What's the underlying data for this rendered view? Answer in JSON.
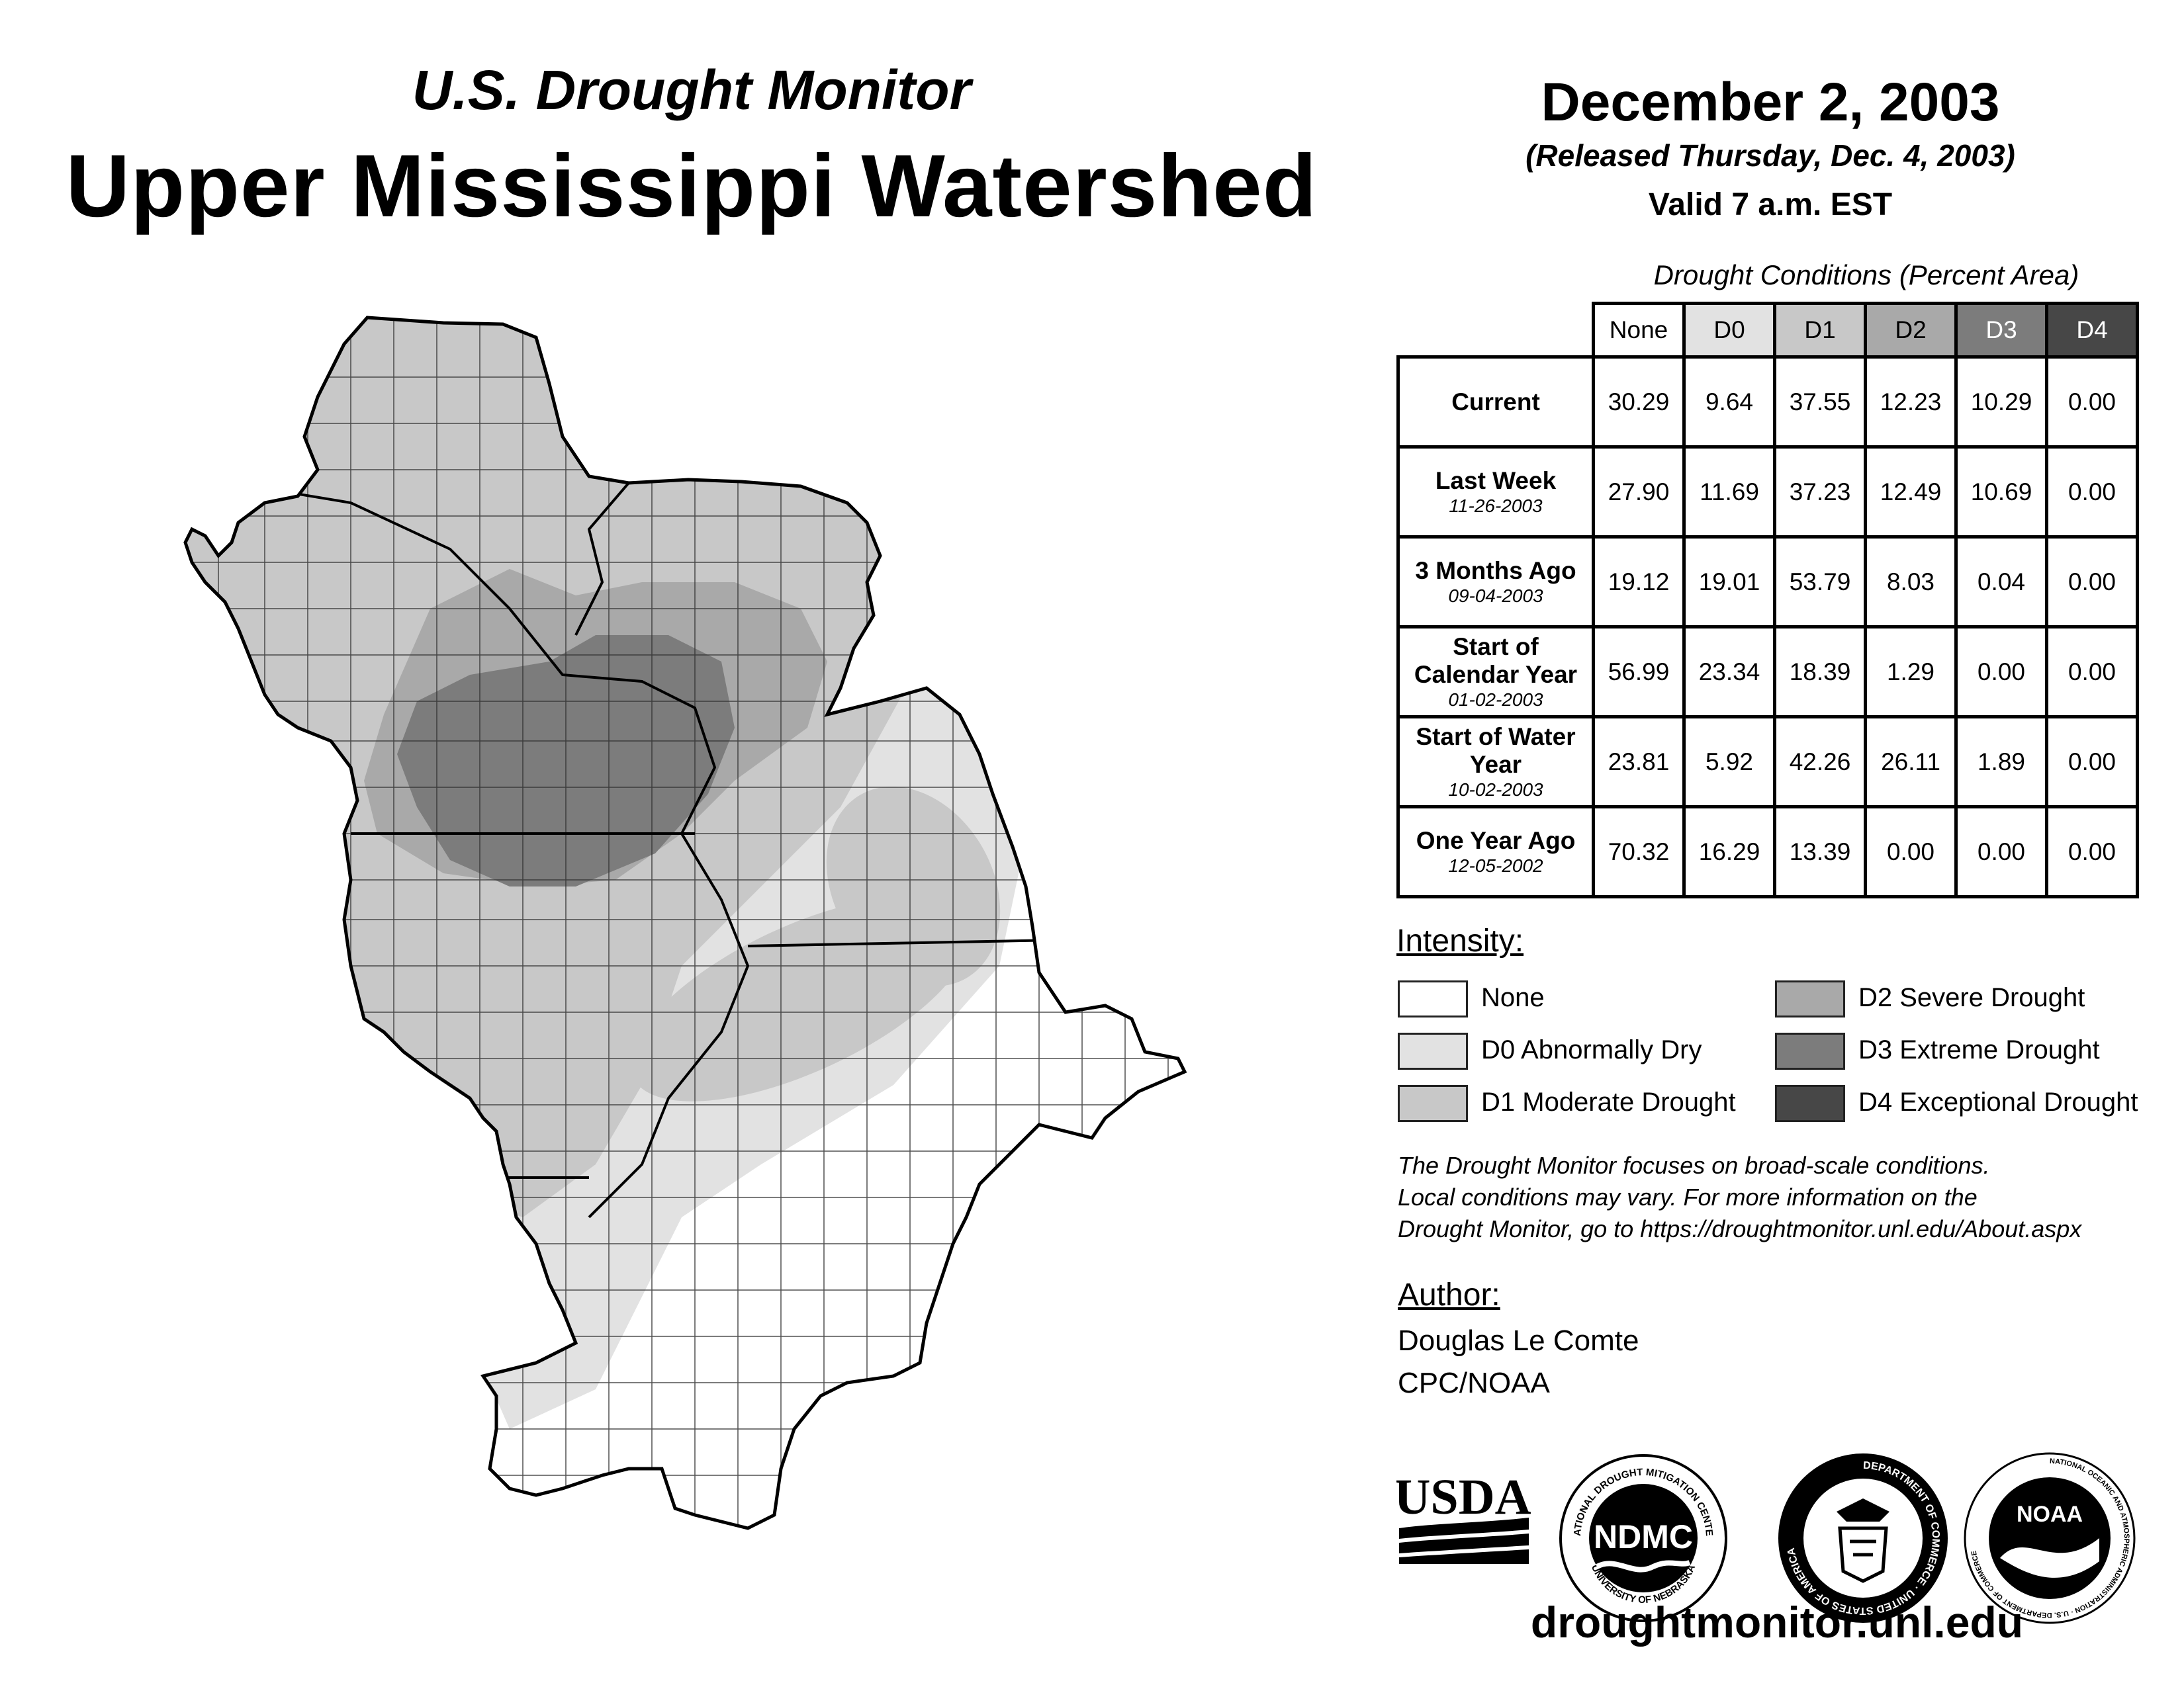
{
  "header": {
    "subtitle": "U.S. Drought Monitor",
    "title": "Upper Mississippi Watershed",
    "date": "December 2, 2003",
    "released": "(Released Thursday, Dec. 4, 2003)",
    "valid": "Valid 7 a.m. EST"
  },
  "table": {
    "caption": "Drought Conditions (Percent Area)",
    "columns": [
      "None",
      "D0",
      "D1",
      "D2",
      "D3",
      "D4"
    ],
    "rows": [
      {
        "label": "Current",
        "date": "",
        "values": [
          "30.29",
          "9.64",
          "37.55",
          "12.23",
          "10.29",
          "0.00"
        ]
      },
      {
        "label": "Last Week",
        "date": "11-26-2003",
        "values": [
          "27.90",
          "11.69",
          "37.23",
          "12.49",
          "10.69",
          "0.00"
        ]
      },
      {
        "label": "3 Months Ago",
        "date": "09-04-2003",
        "values": [
          "19.12",
          "19.01",
          "53.79",
          "8.03",
          "0.04",
          "0.00"
        ]
      },
      {
        "label": "Start of Calendar Year",
        "date": "01-02-2003",
        "values": [
          "56.99",
          "23.34",
          "18.39",
          "1.29",
          "0.00",
          "0.00"
        ]
      },
      {
        "label": "Start of Water Year",
        "date": "10-02-2003",
        "values": [
          "23.81",
          "5.92",
          "42.26",
          "26.11",
          "1.89",
          "0.00"
        ]
      },
      {
        "label": "One Year Ago",
        "date": "12-05-2002",
        "values": [
          "70.32",
          "16.29",
          "13.39",
          "0.00",
          "0.00",
          "0.00"
        ]
      }
    ]
  },
  "legend": {
    "title": "Intensity:",
    "items": [
      {
        "label": "None",
        "color": "#ffffff"
      },
      {
        "label": "D0 Abnormally Dry",
        "color": "#e2e2e2"
      },
      {
        "label": "D1 Moderate Drought",
        "color": "#c8c8c8"
      },
      {
        "label": "D2 Severe Drought",
        "color": "#a9a9a9"
      },
      {
        "label": "D3 Extreme Drought",
        "color": "#7c7c7c"
      },
      {
        "label": "D4 Exceptional Drought",
        "color": "#474747"
      }
    ]
  },
  "note": {
    "line1": "The Drought Monitor focuses on broad-scale conditions.",
    "line2": "Local conditions may vary. For more information on the",
    "line3": "Drought Monitor, go to https://droughtmonitor.unl.edu/About.aspx"
  },
  "author": {
    "title": "Author:",
    "name": "Douglas Le Comte",
    "org": "CPC/NOAA"
  },
  "logos": {
    "usda": "USDA",
    "ndmc": "NDMC",
    "ndmc_ring_top": "NATIONAL DROUGHT MITIGATION CENTER",
    "ndmc_ring_bottom": "UNIVERSITY OF NEBRASKA",
    "commerce_ring": "DEPARTMENT OF COMMERCE · UNITED STATES OF AMERICA",
    "noaa": "NOAA",
    "noaa_ring": "NATIONAL OCEANIC AND ATMOSPHERIC ADMINISTRATION · U.S. DEPARTMENT OF COMMERCE"
  },
  "footer": {
    "website": "droughtmonitor.unl.edu"
  }
}
